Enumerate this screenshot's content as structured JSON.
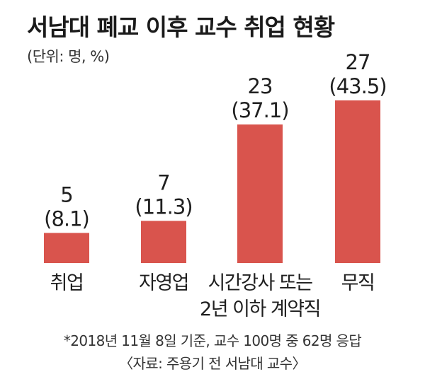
{
  "title": "서남대 폐교 이후 교수 취업 현황",
  "unit_label": "(단위: 명, %)",
  "chart_data": {
    "type": "bar",
    "categories": [
      "취업",
      "자영업",
      "시간강사 또는 2년 이하 계약직",
      "무직"
    ],
    "category_lines": [
      [
        "취업"
      ],
      [
        "자영업"
      ],
      [
        "시간강사 또는",
        "2년 이하 계약직"
      ],
      [
        "무직"
      ]
    ],
    "values": [
      5,
      7,
      23,
      27
    ],
    "percent_labels": [
      "(8.1)",
      "(11.3)",
      "(37.1)",
      "(43.5)"
    ],
    "bar_color": "#d9544d",
    "ylim": [
      0,
      27
    ],
    "grid": false,
    "legend": "none"
  },
  "footnote": "*2018년 11월 8일 기준, 교수 100명 중 62명 응답",
  "source": "〈자료: 주용기 전 서남대 교수〉"
}
